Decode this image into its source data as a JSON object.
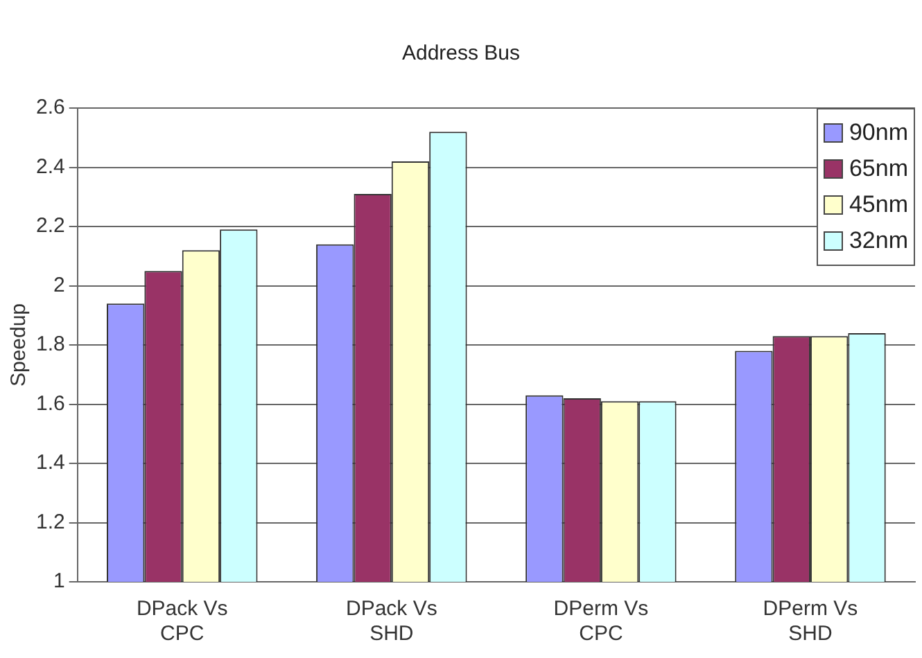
{
  "chart_data": {
    "type": "bar",
    "title": "Address Bus",
    "ylabel": "Speedup",
    "categories": [
      "DPack Vs\nCPC",
      "DPack Vs\nSHD",
      "DPerm Vs\nCPC",
      "DPerm Vs\nSHD"
    ],
    "series": [
      {
        "name": "90nm",
        "color": "#9999ff",
        "values": [
          1.94,
          2.14,
          1.63,
          1.78
        ]
      },
      {
        "name": "65nm",
        "color": "#993366",
        "values": [
          2.05,
          2.31,
          1.62,
          1.83
        ]
      },
      {
        "name": "45nm",
        "color": "#ffffcc",
        "values": [
          2.12,
          2.42,
          1.61,
          1.83
        ]
      },
      {
        "name": "32nm",
        "color": "#ccffff",
        "values": [
          2.19,
          2.52,
          1.61,
          1.84
        ]
      }
    ],
    "ylim": [
      1,
      2.6
    ],
    "yticks": [
      1,
      1.2,
      1.4,
      1.6,
      1.8,
      2,
      2.2,
      2.4,
      2.6
    ],
    "grid": "y",
    "legend": "top right"
  }
}
